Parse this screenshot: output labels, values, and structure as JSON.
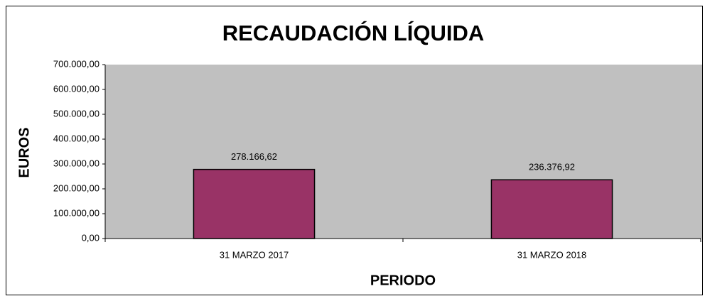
{
  "chart_data": {
    "type": "bar",
    "title": "RECAUDACIÓN LÍQUIDA",
    "x_label": "PERIODO",
    "y_label": "EUROS",
    "categories": [
      "31 MARZO 2017",
      "31 MARZO 2018"
    ],
    "values": [
      278166.62,
      236376.92
    ],
    "value_labels": [
      "278.166,62",
      "236.376,92"
    ],
    "color": "#993366",
    "ylim": [
      0,
      700000
    ],
    "yticks": [
      {
        "value": 0,
        "label": "0,00"
      },
      {
        "value": 100000,
        "label": "100.000,00"
      },
      {
        "value": 200000,
        "label": "200.000,00"
      },
      {
        "value": 300000,
        "label": "300.000,00"
      },
      {
        "value": 400000,
        "label": "400.000,00"
      },
      {
        "value": 500000,
        "label": "500.000,00"
      },
      {
        "value": 600000,
        "label": "600.000,00"
      },
      {
        "value": 700000,
        "label": "700.000,00"
      }
    ],
    "grid": false
  }
}
